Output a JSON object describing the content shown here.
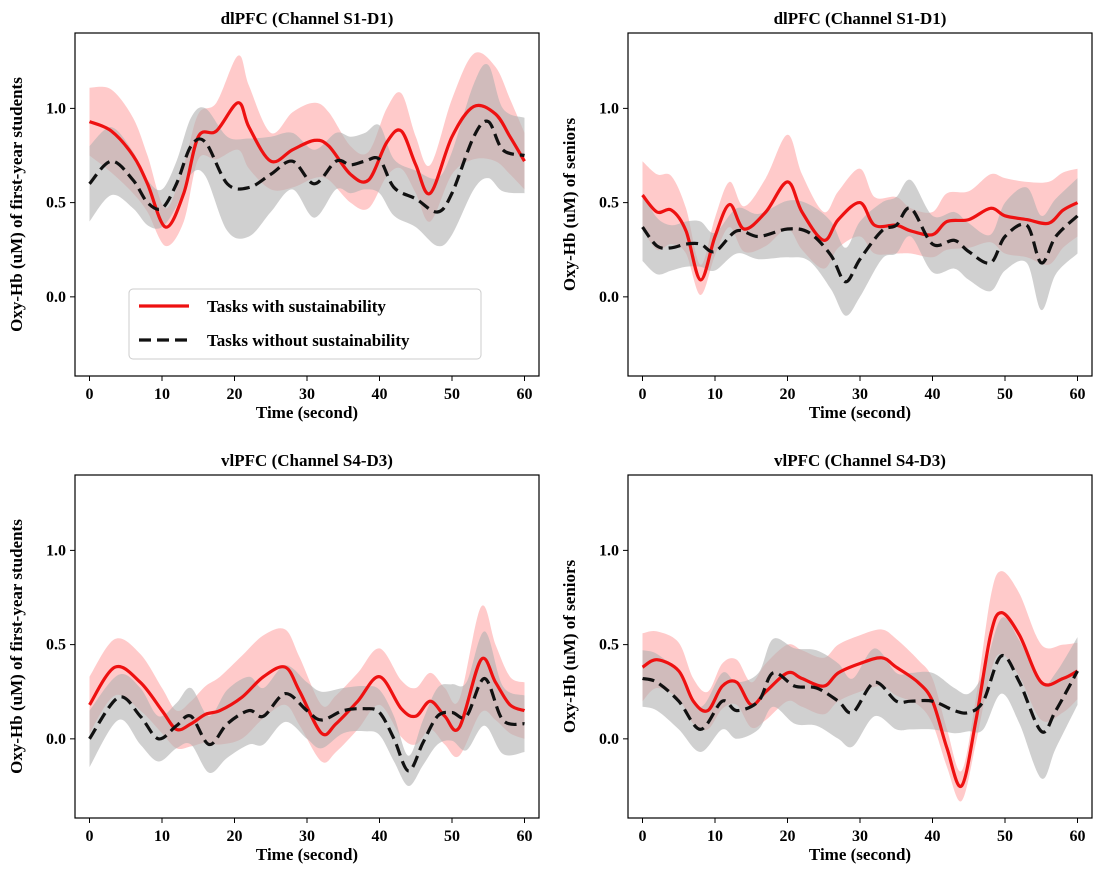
{
  "legend": {
    "with": "Tasks with sustainability",
    "without": "Tasks without sustainability"
  },
  "colors": {
    "with_line": "#ee1111",
    "with_band": "#ffb3b3",
    "without_line": "#111111",
    "without_band": "#b0b0b0"
  },
  "chart_data": [
    {
      "type": "line",
      "title": "dlPFC (Channel S1-D1)",
      "xlabel": "Time (second)",
      "ylabel": "Oxy-Hb (uM) of first-year students",
      "xlim": [
        -2,
        62
      ],
      "ylim": [
        -0.42,
        1.4
      ],
      "xticks": [
        0,
        10,
        20,
        30,
        40,
        50,
        60
      ],
      "yticks": [
        0.0,
        0.5,
        1.0
      ],
      "legend_position": "lower-center",
      "series": [
        {
          "name": "Tasks with sustainability",
          "x": [
            0,
            3,
            6,
            8,
            10.5,
            13,
            15,
            17.5,
            20.5,
            22,
            25,
            28,
            31,
            33,
            36,
            38.5,
            41,
            43,
            45,
            47,
            50,
            53,
            56,
            58,
            60
          ],
          "y": [
            0.93,
            0.88,
            0.75,
            0.6,
            0.37,
            0.55,
            0.85,
            0.88,
            1.03,
            0.9,
            0.72,
            0.78,
            0.83,
            0.8,
            0.65,
            0.62,
            0.82,
            0.88,
            0.7,
            0.55,
            0.85,
            1.01,
            0.97,
            0.85,
            0.72
          ],
          "band": [
            0.18,
            0.22,
            0.2,
            0.15,
            0.1,
            0.15,
            0.12,
            0.15,
            0.25,
            0.22,
            0.15,
            0.2,
            0.2,
            0.18,
            0.15,
            0.15,
            0.18,
            0.2,
            0.15,
            0.15,
            0.2,
            0.28,
            0.25,
            0.2,
            0.15
          ]
        },
        {
          "name": "Tasks without sustainability",
          "x": [
            0,
            3,
            6,
            8,
            10,
            12,
            14,
            16,
            19,
            22,
            25,
            28,
            31,
            34,
            36,
            38,
            40,
            42,
            45,
            48,
            50,
            53,
            55,
            57,
            60
          ],
          "y": [
            0.6,
            0.72,
            0.62,
            0.5,
            0.47,
            0.6,
            0.8,
            0.82,
            0.6,
            0.58,
            0.65,
            0.72,
            0.6,
            0.72,
            0.7,
            0.72,
            0.73,
            0.58,
            0.52,
            0.45,
            0.55,
            0.85,
            0.93,
            0.78,
            0.75
          ],
          "band": [
            0.2,
            0.18,
            0.15,
            0.12,
            0.1,
            0.12,
            0.15,
            0.18,
            0.25,
            0.26,
            0.2,
            0.15,
            0.18,
            0.15,
            0.15,
            0.15,
            0.18,
            0.15,
            0.15,
            0.18,
            0.22,
            0.28,
            0.3,
            0.22,
            0.2
          ]
        }
      ]
    },
    {
      "type": "line",
      "title": "dlPFC (Channel S1-D1)",
      "xlabel": "Time (second)",
      "ylabel": "Oxy-Hb (uM) of seniors",
      "xlim": [
        -2,
        62
      ],
      "ylim": [
        -0.42,
        1.4
      ],
      "xticks": [
        0,
        10,
        20,
        30,
        40,
        50,
        60
      ],
      "yticks": [
        0.0,
        0.5,
        1.0
      ],
      "series": [
        {
          "name": "Tasks with sustainability",
          "x": [
            0,
            2,
            4,
            6,
            8,
            10,
            12,
            14,
            17,
            20,
            22,
            25,
            27,
            30,
            32,
            35,
            37,
            40,
            42,
            45,
            48,
            50,
            53,
            56,
            58,
            60
          ],
          "y": [
            0.54,
            0.45,
            0.46,
            0.35,
            0.09,
            0.32,
            0.49,
            0.36,
            0.45,
            0.61,
            0.45,
            0.3,
            0.41,
            0.5,
            0.38,
            0.38,
            0.35,
            0.33,
            0.4,
            0.41,
            0.47,
            0.43,
            0.41,
            0.39,
            0.46,
            0.5
          ],
          "band": [
            0.18,
            0.2,
            0.18,
            0.12,
            0.08,
            0.1,
            0.12,
            0.12,
            0.18,
            0.25,
            0.2,
            0.15,
            0.15,
            0.18,
            0.15,
            0.15,
            0.12,
            0.12,
            0.15,
            0.15,
            0.18,
            0.2,
            0.2,
            0.22,
            0.2,
            0.18
          ]
        },
        {
          "name": "Tasks without sustainability",
          "x": [
            0,
            2,
            4,
            6,
            8,
            10,
            13,
            16,
            20,
            23,
            26,
            28,
            30,
            33,
            35,
            37,
            40,
            43,
            45,
            48,
            50,
            53,
            55,
            57,
            60
          ],
          "y": [
            0.37,
            0.27,
            0.26,
            0.28,
            0.28,
            0.24,
            0.35,
            0.32,
            0.36,
            0.34,
            0.22,
            0.08,
            0.2,
            0.35,
            0.38,
            0.47,
            0.28,
            0.3,
            0.24,
            0.18,
            0.32,
            0.38,
            0.18,
            0.32,
            0.43
          ],
          "band": [
            0.18,
            0.15,
            0.12,
            0.12,
            0.12,
            0.1,
            0.12,
            0.12,
            0.15,
            0.15,
            0.18,
            0.18,
            0.2,
            0.15,
            0.15,
            0.15,
            0.15,
            0.15,
            0.15,
            0.15,
            0.18,
            0.2,
            0.25,
            0.2,
            0.2
          ]
        }
      ]
    },
    {
      "type": "line",
      "title": "vlPFC (Channel S4-D3)",
      "xlabel": "Time (second)",
      "ylabel": "Oxy-Hb (uM) of first-year students",
      "xlim": [
        -2,
        62
      ],
      "ylim": [
        -0.42,
        1.4
      ],
      "xticks": [
        0,
        10,
        20,
        30,
        40,
        50,
        60
      ],
      "yticks": [
        0.0,
        0.5,
        1.0
      ],
      "series": [
        {
          "name": "Tasks with sustainability",
          "x": [
            0,
            3.5,
            7,
            10,
            12,
            14,
            16,
            18,
            21,
            24,
            27,
            29,
            32,
            34,
            37,
            40,
            43,
            45,
            47,
            49,
            51,
            54,
            56,
            58,
            60
          ],
          "y": [
            0.18,
            0.38,
            0.3,
            0.15,
            0.05,
            0.08,
            0.13,
            0.15,
            0.22,
            0.33,
            0.38,
            0.25,
            0.03,
            0.08,
            0.2,
            0.33,
            0.16,
            0.12,
            0.2,
            0.12,
            0.06,
            0.42,
            0.3,
            0.18,
            0.15
          ],
          "band": [
            0.15,
            0.15,
            0.15,
            0.12,
            0.1,
            0.12,
            0.15,
            0.18,
            0.22,
            0.22,
            0.2,
            0.18,
            0.15,
            0.15,
            0.15,
            0.15,
            0.15,
            0.15,
            0.15,
            0.15,
            0.15,
            0.28,
            0.2,
            0.15,
            0.15
          ]
        },
        {
          "name": "Tasks without sustainability",
          "x": [
            0,
            4,
            7,
            9.5,
            12,
            14,
            16.5,
            19,
            22,
            24,
            27,
            30,
            32,
            35,
            38,
            40,
            42,
            44,
            46,
            48,
            50,
            52,
            54.5,
            57,
            60
          ],
          "y": [
            0.0,
            0.22,
            0.12,
            0.0,
            0.07,
            0.12,
            -0.03,
            0.08,
            0.15,
            0.12,
            0.24,
            0.15,
            0.1,
            0.15,
            0.16,
            0.14,
            0.0,
            -0.17,
            -0.02,
            0.12,
            0.14,
            0.12,
            0.32,
            0.1,
            0.08
          ],
          "band": [
            0.15,
            0.12,
            0.15,
            0.12,
            0.12,
            0.15,
            0.15,
            0.18,
            0.18,
            0.15,
            0.15,
            0.15,
            0.15,
            0.12,
            0.12,
            0.12,
            0.12,
            0.08,
            0.12,
            0.15,
            0.15,
            0.18,
            0.25,
            0.18,
            0.15
          ]
        }
      ]
    },
    {
      "type": "line",
      "title": "vlPFC (Channel S4-D3)",
      "xlabel": "Time (second)",
      "ylabel": "Oxy-Hb (uM) of seniors",
      "xlim": [
        -2,
        62
      ],
      "ylim": [
        -0.42,
        1.4
      ],
      "xticks": [
        0,
        10,
        20,
        30,
        40,
        50,
        60
      ],
      "yticks": [
        0.0,
        0.5,
        1.0
      ],
      "series": [
        {
          "name": "Tasks with sustainability",
          "x": [
            0,
            2,
            5,
            7,
            9,
            11,
            13,
            15,
            17,
            20,
            22,
            25,
            27,
            30,
            33,
            35,
            38,
            40,
            42,
            44,
            46,
            48,
            49.5,
            52,
            55,
            58,
            60
          ],
          "y": [
            0.38,
            0.42,
            0.36,
            0.2,
            0.15,
            0.28,
            0.3,
            0.18,
            0.25,
            0.35,
            0.32,
            0.28,
            0.35,
            0.4,
            0.43,
            0.38,
            0.3,
            0.2,
            -0.05,
            -0.25,
            0.1,
            0.55,
            0.67,
            0.55,
            0.3,
            0.32,
            0.36
          ],
          "band": [
            0.18,
            0.15,
            0.15,
            0.12,
            0.1,
            0.12,
            0.12,
            0.12,
            0.15,
            0.15,
            0.15,
            0.15,
            0.15,
            0.15,
            0.15,
            0.15,
            0.12,
            0.12,
            0.1,
            0.08,
            0.12,
            0.2,
            0.22,
            0.22,
            0.2,
            0.18,
            0.15
          ]
        },
        {
          "name": "Tasks without sustainability",
          "x": [
            0,
            2,
            5,
            8,
            11,
            13,
            16,
            18,
            21,
            24,
            27,
            29,
            32,
            35,
            37,
            40,
            43,
            45,
            47,
            49.5,
            52,
            55,
            57,
            60
          ],
          "y": [
            0.32,
            0.3,
            0.2,
            0.05,
            0.2,
            0.15,
            0.2,
            0.35,
            0.28,
            0.27,
            0.2,
            0.14,
            0.3,
            0.2,
            0.2,
            0.2,
            0.15,
            0.14,
            0.2,
            0.44,
            0.3,
            0.04,
            0.15,
            0.36
          ],
          "band": [
            0.15,
            0.15,
            0.15,
            0.12,
            0.15,
            0.15,
            0.15,
            0.18,
            0.2,
            0.2,
            0.2,
            0.18,
            0.18,
            0.15,
            0.15,
            0.15,
            0.12,
            0.1,
            0.15,
            0.2,
            0.22,
            0.25,
            0.2,
            0.18
          ]
        }
      ]
    }
  ]
}
